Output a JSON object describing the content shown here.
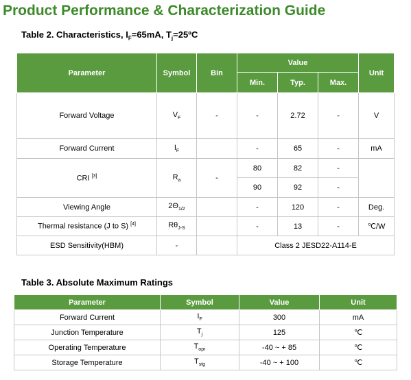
{
  "title": "Product Performance & Characterization Guide",
  "table2": {
    "caption": [
      "Table 2. Characteristics, I",
      "F",
      "=65mA, T",
      "j",
      "=25ºC"
    ],
    "headers": {
      "parameter": "Parameter",
      "symbol": "Symbol",
      "bin": "Bin",
      "value": "Value",
      "min": "Min.",
      "typ": "Typ.",
      "max": "Max.",
      "unit": "Unit"
    },
    "rows": [
      {
        "parameter": "Forward Voltage",
        "symbol": {
          "main": "V",
          "sub": "F"
        },
        "bin": "-",
        "min": "-",
        "typ": 2.72,
        "max": "-",
        "unit": "V"
      },
      {
        "parameter": "Forward Current",
        "symbol": {
          "main": "I",
          "sub": "F"
        },
        "min": "-",
        "typ": 65,
        "max": "-",
        "unit": "mA"
      },
      {
        "parameter": "CRI",
        "note": "[3]",
        "symbol": {
          "main": "R",
          "sub": "a"
        },
        "bin": "-",
        "sub_rows": [
          {
            "min": 80,
            "typ": 82,
            "max": "-"
          },
          {
            "min": 90,
            "typ": 92,
            "max": "-"
          }
        ]
      },
      {
        "parameter": "Viewing Angle",
        "symbol": {
          "main": "2Θ",
          "sub": "1/2"
        },
        "min": "-",
        "typ": 120,
        "max": "-",
        "unit": "Deg."
      },
      {
        "parameter": "Thermal resistance (J to S)",
        "note": "[4]",
        "symbol": {
          "main": "Rθ",
          "sub": "J-S"
        },
        "min": "-",
        "typ": 13,
        "max": "-",
        "unit": "℃/W"
      },
      {
        "parameter": "ESD Sensitivity(HBM)",
        "symbol": {
          "main": "-"
        },
        "value": "Class 2 JESD22-A114-E"
      }
    ]
  },
  "table3": {
    "caption": "Table 3. Absolute Maximum Ratings",
    "headers": [
      "Parameter",
      "Symbol",
      "Value",
      "Unit"
    ],
    "rows": [
      {
        "parameter": "Forward Current",
        "symbol": {
          "main": "I",
          "sub": "F"
        },
        "value": 300,
        "unit": "mA"
      },
      {
        "parameter": "Junction Temperature",
        "symbol": {
          "main": "T",
          "sub": "j"
        },
        "value": 125,
        "unit": "℃"
      },
      {
        "parameter": "Operating Temperature",
        "symbol": {
          "main": "T",
          "sub": "opr"
        },
        "value": "-40 ~ + 85",
        "unit": "℃"
      },
      {
        "parameter": "Storage Temperature",
        "symbol": {
          "main": "T",
          "sub": "stg"
        },
        "value": "-40 ~ + 100",
        "unit": "℃"
      }
    ]
  }
}
